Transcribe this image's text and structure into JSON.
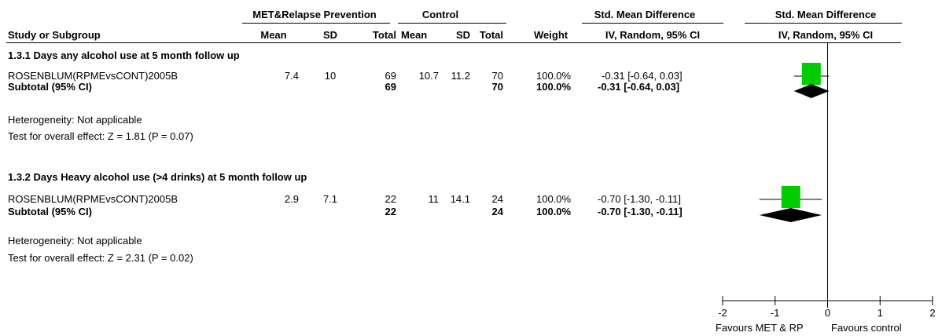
{
  "header": {
    "group_exp": "MET&Relapse Prevention",
    "group_ctrl": "Control",
    "effect_label": "Std. Mean Difference",
    "effect_label_plot": "Std. Mean Difference",
    "col_study": "Study or Subgroup",
    "col_mean": "Mean",
    "col_sd": "SD",
    "col_total": "Total",
    "col_mean2": "Mean",
    "col_sd2": "SD",
    "col_total2": "Total",
    "col_weight": "Weight",
    "col_ci": "IV, Random, 95% CI",
    "col_ci_plot": "IV, Random, 95% CI"
  },
  "subgroups": [
    {
      "title": "1.3.1 Days any alcohol use at 5 month follow up",
      "study": {
        "name": "ROSENBLUM(RPMEvsCONT)2005B",
        "mean_e": "7.4",
        "sd_e": "10",
        "total_e": "69",
        "mean_c": "10.7",
        "sd_c": "11.2",
        "total_c": "70",
        "weight": "100.0%",
        "ci_text": "-0.31 [-0.64, 0.03]"
      },
      "subtotal": {
        "label": "Subtotal (95% CI)",
        "total_e": "69",
        "total_c": "70",
        "weight": "100.0%",
        "ci_text": "-0.31 [-0.64, 0.03]"
      },
      "heterogeneity": "Heterogeneity: Not applicable",
      "overall": "Test for overall effect: Z = 1.81 (P = 0.07)"
    },
    {
      "title": "1.3.2 Days Heavy alcohol use (>4 drinks) at 5 month follow up",
      "study": {
        "name": "ROSENBLUM(RPMEvsCONT)2005B",
        "mean_e": "2.9",
        "sd_e": "7.1",
        "total_e": "22",
        "mean_c": "11",
        "sd_c": "14.1",
        "total_c": "24",
        "weight": "100.0%",
        "ci_text": "-0.70 [-1.30, -0.11]"
      },
      "subtotal": {
        "label": "Subtotal (95% CI)",
        "total_e": "22",
        "total_c": "24",
        "weight": "100.0%",
        "ci_text": "-0.70 [-1.30, -0.11]"
      },
      "heterogeneity": "Heterogeneity: Not applicable",
      "overall": "Test for overall effect: Z = 2.31 (P = 0.02)"
    }
  ],
  "axis": {
    "ticks": [
      -2,
      -1,
      0,
      1,
      2
    ],
    "tick_labels": [
      "-2",
      "-1",
      "0",
      "1",
      "2"
    ],
    "favours_left": "Favours MET & RP",
    "favours_right": "Favours control"
  },
  "chart_data": {
    "type": "forest",
    "xlim": [
      -2,
      2
    ],
    "null_line": 0,
    "colors": {
      "square": "#00cc00",
      "diamond": "#000000"
    },
    "studies": [
      {
        "name": "ROSENBLUM(RPMEvsCONT)2005B",
        "subgroup": "1.3.1",
        "estimate": -0.31,
        "lower": -0.64,
        "upper": 0.03,
        "weight": 100.0
      },
      {
        "name": "ROSENBLUM(RPMEvsCONT)2005B",
        "subgroup": "1.3.2",
        "estimate": -0.7,
        "lower": -1.3,
        "upper": -0.11,
        "weight": 100.0
      }
    ],
    "subtotals": [
      {
        "subgroup": "1.3.1",
        "estimate": -0.31,
        "lower": -0.64,
        "upper": 0.03
      },
      {
        "subgroup": "1.3.2",
        "estimate": -0.7,
        "lower": -1.3,
        "upper": -0.11
      }
    ]
  }
}
